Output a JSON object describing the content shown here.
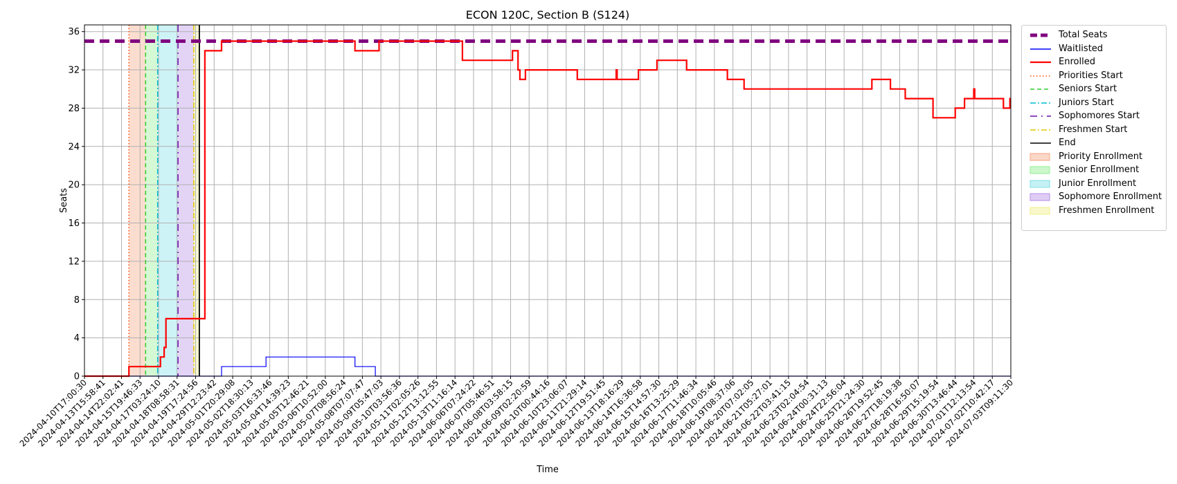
{
  "chart_data": {
    "type": "line",
    "title": "ECON 120C, Section B (S124)",
    "xlabel": "Time",
    "ylabel": "Seats",
    "ylim": [
      0,
      36.7
    ],
    "yticks": [
      0,
      4,
      8,
      12,
      16,
      20,
      24,
      28,
      32,
      36
    ],
    "grid": true,
    "legend_position": "outside-right-top",
    "x_tick_labels": [
      "2024-04-10T17:00:30",
      "2024-04-13T15:58:41",
      "2024-04-14T22:02:41",
      "2024-04-15T19:46:33",
      "2024-04-17T03:24:10",
      "2024-04-18T08:58:31",
      "2024-04-19T17:24:56",
      "2024-04-29T12:23:42",
      "2024-05-01T20:29:08",
      "2024-05-02T18:30:13",
      "2024-05-03T16:33:46",
      "2024-05-04T14:39:23",
      "2024-05-05T12:46:21",
      "2024-05-06T10:52:00",
      "2024-05-07T08:56:24",
      "2024-05-08T07:07:47",
      "2024-05-09T05:47:03",
      "2024-05-10T03:56:36",
      "2024-05-11T02:05:26",
      "2024-05-12T13:12:55",
      "2024-05-13T11:16:14",
      "2024-06-06T07:24:22",
      "2024-06-07T05:46:51",
      "2024-06-08T03:58:15",
      "2024-06-09T02:20:59",
      "2024-06-10T00:44:16",
      "2024-06-10T23:06:07",
      "2024-06-11T21:29:14",
      "2024-06-12T19:51:45",
      "2024-06-13T18:16:29",
      "2024-06-14T16:36:58",
      "2024-06-15T14:57:30",
      "2024-06-16T13:25:29",
      "2024-06-17T11:46:34",
      "2024-06-18T10:05:46",
      "2024-06-19T08:37:06",
      "2024-06-20T07:02:05",
      "2024-06-21T05:27:01",
      "2024-06-22T03:41:15",
      "2024-06-23T02:04:54",
      "2024-06-24T00:31:13",
      "2024-06-24T22:56:04",
      "2024-06-25T21:24:30",
      "2024-06-26T19:52:45",
      "2024-06-27T18:19:38",
      "2024-06-28T16:50:07",
      "2024-06-29T15:19:54",
      "2024-06-30T13:46:44",
      "2024-07-01T12:13:54",
      "2024-07-02T10:42:17",
      "2024-07-03T09:11:30"
    ],
    "x_range": [
      0,
      50
    ],
    "total_seats": 35,
    "series": [
      {
        "name": "Total Seats",
        "color": "#800080",
        "style": "dashed",
        "points": [
          [
            0,
            35
          ],
          [
            50,
            35
          ]
        ]
      },
      {
        "name": "Waitlisted",
        "color": "#0000ff",
        "style": "solid",
        "points": [
          [
            0,
            0
          ],
          [
            7.4,
            0
          ],
          [
            7.4,
            1
          ],
          [
            9.8,
            1
          ],
          [
            9.8,
            2
          ],
          [
            14.6,
            2
          ],
          [
            14.6,
            1
          ],
          [
            15.7,
            1
          ],
          [
            15.7,
            0
          ],
          [
            50,
            0
          ]
        ]
      },
      {
        "name": "Enrolled",
        "color": "#ff0000",
        "style": "solid",
        "points": [
          [
            0,
            0
          ],
          [
            2.4,
            0
          ],
          [
            2.4,
            1
          ],
          [
            4.1,
            1
          ],
          [
            4.1,
            2
          ],
          [
            4.3,
            2
          ],
          [
            4.3,
            3
          ],
          [
            4.4,
            3
          ],
          [
            4.4,
            6
          ],
          [
            6.5,
            6
          ],
          [
            6.5,
            34
          ],
          [
            7.4,
            34
          ],
          [
            7.4,
            35
          ],
          [
            14.6,
            35
          ],
          [
            14.6,
            34
          ],
          [
            15.9,
            34
          ],
          [
            15.9,
            35
          ],
          [
            20.4,
            35
          ],
          [
            20.4,
            33
          ],
          [
            23.1,
            33
          ],
          [
            23.1,
            34
          ],
          [
            23.4,
            34
          ],
          [
            23.4,
            32
          ],
          [
            23.5,
            32
          ],
          [
            23.5,
            31
          ],
          [
            23.8,
            31
          ],
          [
            23.8,
            32
          ],
          [
            26.6,
            32
          ],
          [
            26.6,
            31
          ],
          [
            28.7,
            31
          ],
          [
            28.7,
            32
          ],
          [
            28.75,
            32
          ],
          [
            28.75,
            31
          ],
          [
            29.9,
            31
          ],
          [
            29.9,
            32
          ],
          [
            30.9,
            32
          ],
          [
            30.9,
            33
          ],
          [
            32.5,
            33
          ],
          [
            32.5,
            32
          ],
          [
            34.7,
            32
          ],
          [
            34.7,
            31
          ],
          [
            35.6,
            31
          ],
          [
            35.6,
            30
          ],
          [
            42.5,
            30
          ],
          [
            42.5,
            31
          ],
          [
            43.5,
            31
          ],
          [
            43.5,
            30
          ],
          [
            44.3,
            30
          ],
          [
            44.3,
            29
          ],
          [
            45.8,
            29
          ],
          [
            45.8,
            27
          ],
          [
            47.0,
            27
          ],
          [
            47.0,
            28
          ],
          [
            47.5,
            28
          ],
          [
            47.5,
            29
          ],
          [
            48.0,
            29
          ],
          [
            48.0,
            30
          ],
          [
            48.05,
            30
          ],
          [
            48.05,
            29
          ],
          [
            49.6,
            29
          ],
          [
            49.6,
            28
          ],
          [
            49.95,
            28
          ],
          [
            49.95,
            29
          ],
          [
            50,
            29
          ]
        ]
      },
      {
        "name": "Priorities Start",
        "color": "#ff4500",
        "style": "dotted",
        "x": 2.4
      },
      {
        "name": "Seniors Start",
        "color": "#2ecc2e",
        "style": "dashed",
        "x": 3.3
      },
      {
        "name": "Juniors Start",
        "color": "#00bcd4",
        "style": "dashdot",
        "x": 3.95
      },
      {
        "name": "Sophomores Start",
        "color": "#6a0dad",
        "style": "dashdotsparse",
        "x": 5.05
      },
      {
        "name": "Freshmen Start",
        "color": "#e0c800",
        "style": "dashdot",
        "x": 5.9
      },
      {
        "name": "End",
        "color": "#000000",
        "style": "solid",
        "x": 6.2
      }
    ],
    "bands": [
      {
        "name": "Priority Enrollment",
        "color": "#f4a582",
        "from": 2.4,
        "to": 3.3
      },
      {
        "name": "Senior Enrollment",
        "color": "#90ee90",
        "from": 3.3,
        "to": 3.95
      },
      {
        "name": "Junior Enrollment",
        "color": "#7fdfe8",
        "from": 3.95,
        "to": 5.05
      },
      {
        "name": "Sophomore Enrollment",
        "color": "#b68ee8",
        "from": 5.05,
        "to": 5.9
      },
      {
        "name": "Freshmen Enrollment",
        "color": "#f0f08c",
        "from": 5.9,
        "to": 6.2
      }
    ]
  }
}
